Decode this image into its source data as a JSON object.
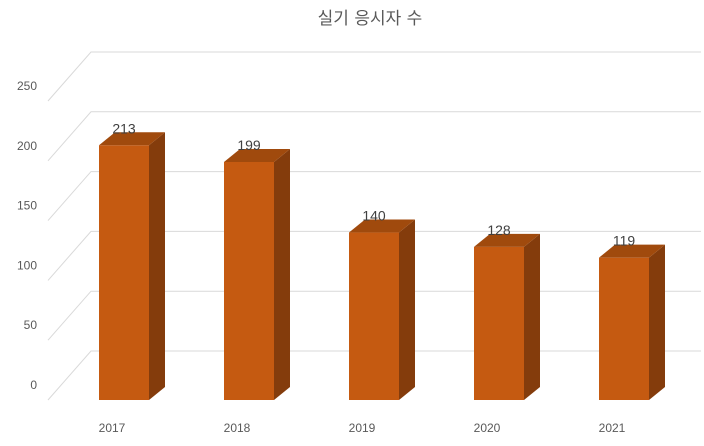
{
  "chart_data": {
    "type": "bar",
    "title": "실기 응시자 수",
    "categories": [
      "2017",
      "2018",
      "2019",
      "2020",
      "2021"
    ],
    "values": [
      213,
      199,
      140,
      128,
      119
    ],
    "ylim": [
      0,
      250
    ],
    "yticks": [
      "0",
      "50",
      "100",
      "150",
      "200",
      "250"
    ],
    "grid": true,
    "data_labels": true,
    "colors": {
      "front": "#c55a11",
      "side": "#843c0c",
      "top": "#a04a0d"
    }
  }
}
